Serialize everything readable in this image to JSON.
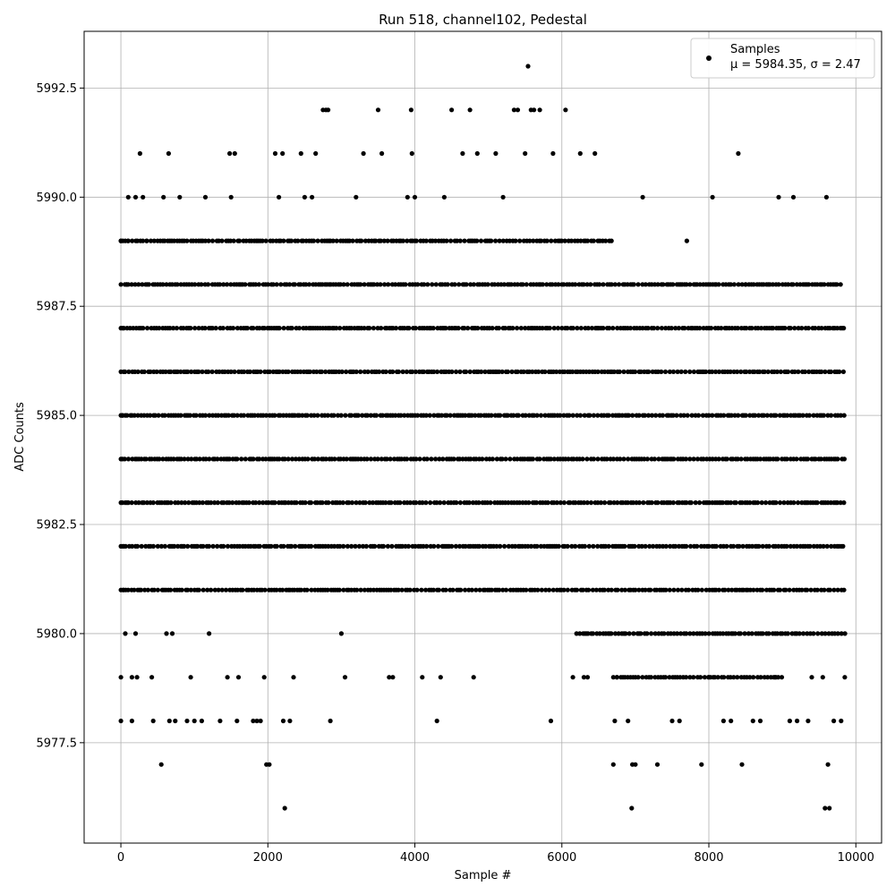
{
  "chart_data": {
    "type": "scatter",
    "title": "Run 518, channel102, Pedestal",
    "xlabel": "Sample #",
    "ylabel": "ADC Counts",
    "xlim": [
      -500,
      10350
    ],
    "ylim": [
      5975.2,
      5993.8
    ],
    "x_ticks": [
      0,
      2000,
      4000,
      6000,
      8000,
      10000
    ],
    "y_ticks": [
      5977.5,
      5980.0,
      5982.5,
      5985.0,
      5987.5,
      5990.0,
      5992.5
    ],
    "x_tick_labels": [
      "0",
      "2000",
      "4000",
      "6000",
      "8000",
      "10000"
    ],
    "y_tick_labels": [
      "5977.5",
      "5980.0",
      "5982.5",
      "5985.0",
      "5987.5",
      "5990.0",
      "5992.5"
    ],
    "grid": true,
    "legend": {
      "placement": "top-right",
      "series_label": "Samples",
      "stats_label": "μ = 5984.35, σ = 2.47"
    },
    "series": [
      {
        "name": "Samples",
        "color": "#000000",
        "marker": "dot",
        "points": [
          [
            0,
            5989
          ],
          [
            0,
            5978
          ],
          [
            0,
            5979
          ],
          [
            20,
            5985
          ],
          [
            20,
            5984
          ],
          [
            20,
            5983
          ],
          [
            40,
            5987
          ],
          [
            40,
            5986
          ],
          [
            40,
            5982
          ],
          [
            40,
            5981
          ],
          [
            60,
            5980
          ],
          [
            80,
            5988
          ],
          [
            100,
            5990
          ],
          [
            100,
            5989
          ],
          [
            150,
            5978
          ],
          [
            150,
            5979
          ],
          [
            200,
            5990
          ],
          [
            200,
            5980
          ],
          [
            220,
            5979
          ],
          [
            260,
            5991
          ],
          [
            300,
            5990
          ],
          [
            350,
            5989
          ],
          [
            420,
            5979
          ],
          [
            440,
            5978
          ],
          [
            550,
            5977
          ],
          [
            580,
            5990
          ],
          [
            620,
            5980
          ],
          [
            650,
            5991
          ],
          [
            660,
            5978
          ],
          [
            700,
            5980
          ],
          [
            740,
            5978
          ],
          [
            800,
            5990
          ],
          [
            900,
            5978
          ],
          [
            950,
            5979
          ],
          [
            1000,
            5978
          ],
          [
            1100,
            5978
          ],
          [
            1150,
            5990
          ],
          [
            1200,
            5980
          ],
          [
            1350,
            5978
          ],
          [
            1450,
            5979
          ],
          [
            1480,
            5991
          ],
          [
            1500,
            5990
          ],
          [
            1550,
            5991
          ],
          [
            1580,
            5978
          ],
          [
            1600,
            5979
          ],
          [
            1800,
            5978
          ],
          [
            1850,
            5978
          ],
          [
            1900,
            5978
          ],
          [
            1950,
            5979
          ],
          [
            1980,
            5977
          ],
          [
            2020,
            5977
          ],
          [
            2100,
            5991
          ],
          [
            2150,
            5990
          ],
          [
            2200,
            5991
          ],
          [
            2210,
            5978
          ],
          [
            2230,
            5976
          ],
          [
            2300,
            5978
          ],
          [
            2350,
            5979
          ],
          [
            2450,
            5991
          ],
          [
            2500,
            5990
          ],
          [
            2600,
            5990
          ],
          [
            2650,
            5991
          ],
          [
            2750,
            5992
          ],
          [
            2790,
            5992
          ],
          [
            2820,
            5992
          ],
          [
            2850,
            5978
          ],
          [
            3000,
            5980
          ],
          [
            3050,
            5979
          ],
          [
            3200,
            5990
          ],
          [
            3300,
            5991
          ],
          [
            3500,
            5992
          ],
          [
            3550,
            5991
          ],
          [
            3650,
            5979
          ],
          [
            3700,
            5979
          ],
          [
            3900,
            5990
          ],
          [
            3950,
            5992
          ],
          [
            3960,
            5991
          ],
          [
            4000,
            5990
          ],
          [
            4100,
            5979
          ],
          [
            4300,
            5978
          ],
          [
            4350,
            5979
          ],
          [
            4400,
            5990
          ],
          [
            4500,
            5992
          ],
          [
            4650,
            5991
          ],
          [
            4750,
            5992
          ],
          [
            4800,
            5979
          ],
          [
            4850,
            5991
          ],
          [
            5100,
            5991
          ],
          [
            5200,
            5990
          ],
          [
            5350,
            5992
          ],
          [
            5400,
            5992
          ],
          [
            5500,
            5991
          ],
          [
            5540,
            5993
          ],
          [
            5580,
            5992
          ],
          [
            5620,
            5992
          ],
          [
            5700,
            5992
          ],
          [
            5850,
            5978
          ],
          [
            5880,
            5991
          ],
          [
            6050,
            5992
          ],
          [
            6150,
            5979
          ],
          [
            6250,
            5991
          ],
          [
            6300,
            5979
          ],
          [
            6350,
            5979
          ],
          [
            6450,
            5991
          ],
          [
            6700,
            5977
          ],
          [
            6720,
            5978
          ],
          [
            6750,
            5979
          ],
          [
            6900,
            5978
          ],
          [
            6950,
            5976
          ],
          [
            6960,
            5977
          ],
          [
            7000,
            5977
          ],
          [
            7100,
            5990
          ],
          [
            7300,
            5977
          ],
          [
            7450,
            5988
          ],
          [
            7500,
            5978
          ],
          [
            7600,
            5978
          ],
          [
            7700,
            5989
          ],
          [
            7900,
            5977
          ],
          [
            8000,
            5979
          ],
          [
            8050,
            5990
          ],
          [
            8100,
            5988
          ],
          [
            8200,
            5978
          ],
          [
            8300,
            5978
          ],
          [
            8400,
            5991
          ],
          [
            8450,
            5977
          ],
          [
            8500,
            5988
          ],
          [
            8600,
            5978
          ],
          [
            8700,
            5978
          ],
          [
            8900,
            5979
          ],
          [
            8950,
            5990
          ],
          [
            9100,
            5978
          ],
          [
            9150,
            5990
          ],
          [
            9200,
            5978
          ],
          [
            9350,
            5978
          ],
          [
            9400,
            5979
          ],
          [
            9550,
            5979
          ],
          [
            9580,
            5976
          ],
          [
            9600,
            5990
          ],
          [
            9620,
            5977
          ],
          [
            9640,
            5976
          ],
          [
            9700,
            5978
          ],
          [
            9800,
            5978
          ],
          [
            9850,
            5979
          ]
        ],
        "dense_runs": [
          {
            "y": 5989,
            "x_start": 0,
            "x_end": 6700
          },
          {
            "y": 5988,
            "x_start": 0,
            "x_end": 9800
          },
          {
            "y": 5987,
            "x_start": 0,
            "x_end": 9850
          },
          {
            "y": 5986,
            "x_start": 0,
            "x_end": 9850
          },
          {
            "y": 5985,
            "x_start": 0,
            "x_end": 9860
          },
          {
            "y": 5984,
            "x_start": 0,
            "x_end": 9860
          },
          {
            "y": 5983,
            "x_start": 0,
            "x_end": 9860
          },
          {
            "y": 5982,
            "x_start": 0,
            "x_end": 9860
          },
          {
            "y": 5981,
            "x_start": 0,
            "x_end": 9860
          },
          {
            "y": 5980,
            "x_start": 6200,
            "x_end": 9860
          },
          {
            "y": 5979,
            "x_start": 6700,
            "x_end": 9000
          }
        ]
      }
    ]
  }
}
